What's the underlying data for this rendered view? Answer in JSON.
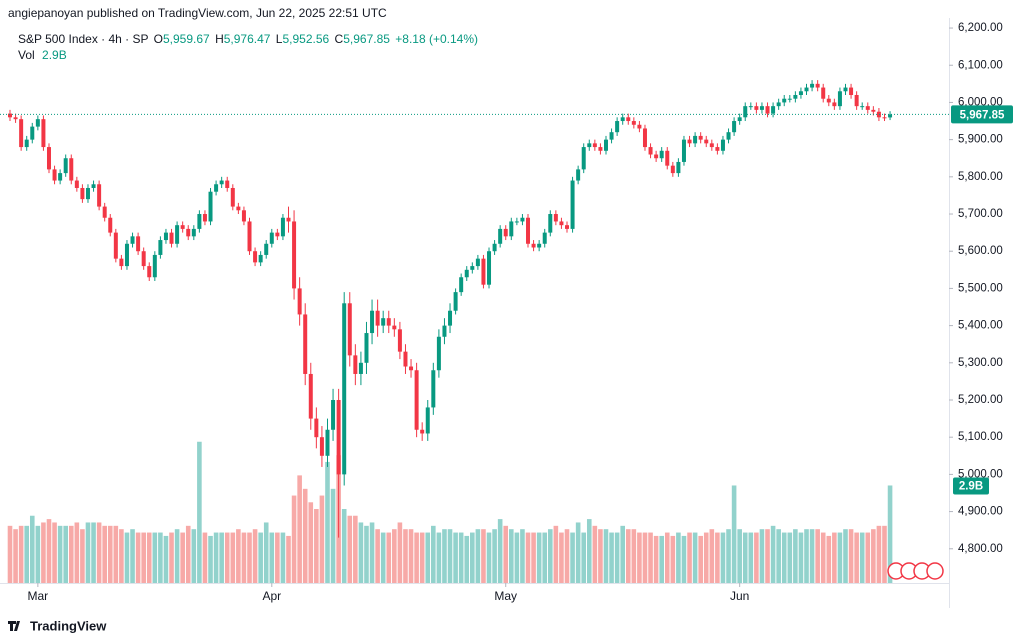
{
  "header": {
    "attribution": "angiepanoyan published on TradingView.com, Jun 22, 2025 22:51 UTC"
  },
  "footer": {
    "brand": "TradingView"
  },
  "chart_data": {
    "type": "candlestick",
    "legend": {
      "symbol": "S&P 500 Index · 4h · SP",
      "open_label": "O",
      "open": "5,959.67",
      "high_label": "H",
      "high": "5,976.47",
      "low_label": "L",
      "low": "5,952.56",
      "close_label": "C",
      "close": "5,967.85",
      "change": "+8.18 (+0.14%)",
      "volume_label": "Vol",
      "volume": "2.9B"
    },
    "up_color": "#089981",
    "down_color": "#f23645",
    "up_volume_color": "#92d2cc",
    "down_volume_color": "#f7a9a7",
    "ylim": [
      4708,
      6227
    ],
    "volume_ylim": [
      0,
      16.8
    ],
    "yticks": [
      {
        "value": 4800,
        "label": "4,800.00"
      },
      {
        "value": 4900,
        "label": "4,900.00"
      },
      {
        "value": 5000,
        "label": "5,000.00"
      },
      {
        "value": 5100,
        "label": "5,100.00"
      },
      {
        "value": 5200,
        "label": "5,200.00"
      },
      {
        "value": 5300,
        "label": "5,300.00"
      },
      {
        "value": 5400,
        "label": "5,400.00"
      },
      {
        "value": 5500,
        "label": "5,500.00"
      },
      {
        "value": 5600,
        "label": "5,600.00"
      },
      {
        "value": 5700,
        "label": "5,700.00"
      },
      {
        "value": 5800,
        "label": "5,800.00"
      },
      {
        "value": 5900,
        "label": "5,900.00"
      },
      {
        "value": 6000,
        "label": "6,000.00"
      },
      {
        "value": 6100,
        "label": "6,100.00"
      },
      {
        "value": 6200,
        "label": "6,200.00"
      }
    ],
    "month_ticks": [
      {
        "value": 5,
        "label": "Mar"
      },
      {
        "value": 47,
        "label": "Apr"
      },
      {
        "value": 89,
        "label": "May"
      },
      {
        "value": 131,
        "label": "Jun"
      }
    ],
    "last_price": {
      "value": 5967.85,
      "label": "5,967.85"
    },
    "last_volume": {
      "value": 2.9,
      "label": "2.9B"
    },
    "open": [
      5970,
      5960,
      5955,
      5880,
      5900,
      5935,
      5955,
      5880,
      5820,
      5790,
      5810,
      5850,
      5790,
      5770,
      5740,
      5770,
      5780,
      5720,
      5690,
      5650,
      5580,
      5560,
      5620,
      5640,
      5600,
      5560,
      5530,
      5590,
      5630,
      5650,
      5620,
      5670,
      5660,
      5640,
      5660,
      5700,
      5680,
      5760,
      5780,
      5790,
      5770,
      5720,
      5710,
      5680,
      5600,
      5570,
      5590,
      5620,
      5650,
      5640,
      5690,
      5680,
      5500,
      5430,
      5270,
      5150,
      5100,
      5050,
      5120,
      5200,
      5000,
      5460,
      5320,
      5270,
      5300,
      5380,
      5440,
      5400,
      5420,
      5400,
      5390,
      5330,
      5290,
      5280,
      5120,
      5110,
      5180,
      5280,
      5370,
      5400,
      5440,
      5490,
      5530,
      5550,
      5560,
      5580,
      5510,
      5600,
      5620,
      5660,
      5640,
      5680,
      5680,
      5690,
      5620,
      5610,
      5620,
      5650,
      5700,
      5680,
      5670,
      5660,
      5790,
      5820,
      5880,
      5890,
      5880,
      5870,
      5900,
      5920,
      5950,
      5960,
      5950,
      5940,
      5930,
      5880,
      5860,
      5850,
      5870,
      5830,
      5810,
      5840,
      5900,
      5890,
      5910,
      5900,
      5890,
      5880,
      5870,
      5900,
      5920,
      5950,
      5960,
      5990,
      5990,
      5980,
      5990,
      5970,
      5990,
      6000,
      6010,
      6010,
      6020,
      6030,
      6040,
      6050,
      6040,
      6010,
      6000,
      5990,
      6030,
      6040,
      6020,
      5990,
      5990,
      5980,
      5975,
      5960,
      5959.67
    ],
    "high": [
      5980,
      5970,
      5965,
      5910,
      5945,
      5965,
      5965,
      5890,
      5830,
      5820,
      5860,
      5860,
      5800,
      5780,
      5780,
      5790,
      5790,
      5730,
      5700,
      5660,
      5590,
      5630,
      5650,
      5650,
      5610,
      5570,
      5600,
      5640,
      5660,
      5660,
      5680,
      5680,
      5670,
      5670,
      5710,
      5710,
      5770,
      5790,
      5800,
      5800,
      5780,
      5730,
      5720,
      5690,
      5610,
      5600,
      5630,
      5660,
      5660,
      5700,
      5720,
      5710,
      5530,
      5460,
      5300,
      5180,
      5130,
      5150,
      5230,
      5230,
      5490,
      5490,
      5350,
      5330,
      5410,
      5470,
      5470,
      5440,
      5440,
      5420,
      5410,
      5350,
      5310,
      5300,
      5140,
      5200,
      5300,
      5390,
      5420,
      5460,
      5500,
      5540,
      5560,
      5570,
      5590,
      5590,
      5610,
      5630,
      5670,
      5670,
      5690,
      5690,
      5700,
      5700,
      5630,
      5630,
      5660,
      5710,
      5710,
      5690,
      5680,
      5800,
      5830,
      5890,
      5900,
      5900,
      5890,
      5910,
      5930,
      5960,
      5970,
      5970,
      5960,
      5950,
      5940,
      5890,
      5870,
      5880,
      5880,
      5840,
      5850,
      5910,
      5910,
      5920,
      5920,
      5910,
      5900,
      5890,
      5910,
      5930,
      5960,
      5970,
      6000,
      6000,
      6000,
      6000,
      6000,
      6000,
      6010,
      6020,
      6020,
      6030,
      6040,
      6050,
      6060,
      6060,
      6050,
      6020,
      6010,
      6040,
      6050,
      6050,
      6030,
      6000,
      6000,
      5990,
      5985,
      5970,
      5976.47
    ],
    "low": [
      5950,
      5945,
      5870,
      5870,
      5890,
      5925,
      5870,
      5810,
      5780,
      5780,
      5800,
      5780,
      5760,
      5730,
      5730,
      5760,
      5710,
      5680,
      5640,
      5570,
      5550,
      5550,
      5610,
      5590,
      5550,
      5520,
      5520,
      5580,
      5620,
      5610,
      5610,
      5650,
      5630,
      5630,
      5650,
      5670,
      5670,
      5750,
      5770,
      5760,
      5710,
      5700,
      5670,
      5590,
      5560,
      5560,
      5580,
      5610,
      5630,
      5630,
      5650,
      5470,
      5400,
      5240,
      5120,
      5070,
      5020,
      5020,
      5090,
      4830,
      4970,
      5290,
      5240,
      5240,
      5270,
      5350,
      5370,
      5380,
      5380,
      5370,
      5310,
      5270,
      5260,
      5100,
      5090,
      5090,
      5160,
      5260,
      5350,
      5380,
      5430,
      5480,
      5520,
      5540,
      5550,
      5500,
      5500,
      5590,
      5610,
      5630,
      5630,
      5670,
      5670,
      5610,
      5600,
      5600,
      5610,
      5640,
      5670,
      5660,
      5650,
      5650,
      5780,
      5810,
      5870,
      5870,
      5860,
      5860,
      5890,
      5910,
      5940,
      5940,
      5930,
      5920,
      5870,
      5850,
      5840,
      5840,
      5820,
      5800,
      5800,
      5830,
      5880,
      5880,
      5890,
      5880,
      5870,
      5860,
      5860,
      5890,
      5910,
      5940,
      5950,
      5980,
      5970,
      5970,
      5960,
      5960,
      5980,
      5990,
      6000,
      6000,
      6010,
      6020,
      6030,
      6030,
      6000,
      5990,
      5980,
      5980,
      6020,
      6010,
      5980,
      5980,
      5970,
      5965,
      5950,
      5950,
      5952.56
    ],
    "close": [
      5960,
      5955,
      5880,
      5900,
      5935,
      5955,
      5880,
      5820,
      5790,
      5810,
      5850,
      5790,
      5770,
      5740,
      5770,
      5780,
      5720,
      5690,
      5650,
      5580,
      5560,
      5620,
      5640,
      5600,
      5560,
      5530,
      5590,
      5630,
      5650,
      5620,
      5670,
      5660,
      5640,
      5660,
      5700,
      5680,
      5760,
      5780,
      5790,
      5770,
      5720,
      5710,
      5680,
      5600,
      5570,
      5590,
      5620,
      5650,
      5640,
      5690,
      5680,
      5500,
      5430,
      5270,
      5150,
      5100,
      5050,
      5120,
      5200,
      5000,
      5460,
      5320,
      5270,
      5300,
      5380,
      5440,
      5400,
      5420,
      5400,
      5390,
      5330,
      5290,
      5280,
      5120,
      5110,
      5180,
      5280,
      5370,
      5400,
      5440,
      5490,
      5530,
      5550,
      5560,
      5580,
      5510,
      5600,
      5620,
      5660,
      5640,
      5680,
      5680,
      5690,
      5620,
      5610,
      5620,
      5650,
      5700,
      5680,
      5670,
      5660,
      5790,
      5820,
      5880,
      5890,
      5880,
      5870,
      5900,
      5920,
      5950,
      5960,
      5950,
      5940,
      5930,
      5880,
      5860,
      5850,
      5870,
      5830,
      5810,
      5840,
      5900,
      5890,
      5910,
      5900,
      5890,
      5880,
      5870,
      5900,
      5920,
      5950,
      5960,
      5990,
      5990,
      5980,
      5990,
      5970,
      5990,
      6000,
      6010,
      6010,
      6020,
      6030,
      6040,
      6050,
      6040,
      6010,
      6000,
      5990,
      6030,
      6040,
      6020,
      5990,
      5990,
      5980,
      5975,
      5960,
      5959.67,
      5967.85
    ],
    "volume": [
      1.7,
      1.6,
      1.7,
      1.7,
      2.0,
      1.7,
      1.8,
      1.9,
      1.8,
      1.7,
      1.7,
      1.7,
      1.8,
      1.6,
      1.8,
      1.8,
      1.8,
      1.7,
      1.7,
      1.7,
      1.6,
      1.5,
      1.6,
      1.5,
      1.5,
      1.5,
      1.5,
      1.5,
      1.4,
      1.5,
      1.6,
      1.5,
      1.7,
      1.6,
      4.2,
      1.5,
      1.4,
      1.5,
      1.5,
      1.5,
      1.5,
      1.6,
      1.5,
      1.5,
      1.6,
      1.5,
      1.8,
      1.5,
      1.5,
      1.5,
      1.4,
      2.6,
      3.2,
      2.8,
      2.4,
      2.2,
      2.6,
      3.6,
      2.8,
      3.8,
      2.2,
      2.0,
      2.0,
      1.8,
      1.7,
      1.8,
      1.6,
      1.5,
      1.5,
      1.6,
      1.8,
      1.6,
      1.6,
      1.5,
      1.5,
      1.5,
      1.7,
      1.5,
      1.6,
      1.6,
      1.5,
      1.5,
      1.4,
      1.5,
      1.6,
      1.6,
      1.5,
      1.6,
      1.9,
      1.7,
      1.6,
      1.5,
      1.6,
      1.5,
      1.5,
      1.5,
      1.5,
      1.6,
      1.7,
      1.5,
      1.6,
      1.5,
      1.8,
      1.5,
      1.9,
      1.7,
      1.6,
      1.6,
      1.5,
      1.5,
      1.7,
      1.6,
      1.6,
      1.5,
      1.5,
      1.5,
      1.4,
      1.4,
      1.5,
      1.4,
      1.5,
      1.4,
      1.5,
      1.5,
      1.4,
      1.5,
      1.6,
      1.5,
      1.5,
      1.6,
      2.9,
      1.6,
      1.5,
      1.5,
      1.5,
      1.6,
      1.6,
      1.7,
      1.6,
      1.5,
      1.5,
      1.6,
      1.5,
      1.6,
      1.6,
      1.6,
      1.5,
      1.4,
      1.5,
      1.5,
      1.6,
      1.6,
      1.5,
      1.5,
      1.5,
      1.6,
      1.7,
      1.7,
      2.9
    ]
  }
}
